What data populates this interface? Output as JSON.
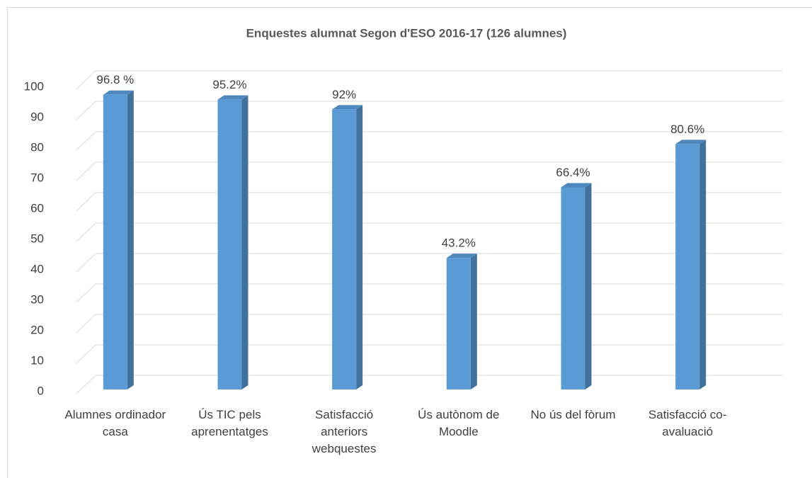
{
  "chart_data": {
    "type": "bar",
    "title": "Enquestes alumnat Segon d'ESO 2016-17 (126 alumnes)",
    "categories": [
      "Alumnes ordinador casa",
      "Ús TIC pels aprenentatges",
      "Satisfacció anteriors webquestes",
      "Ús autònom de Moodle",
      "No ús del fòrum",
      "Satisfacció co-avaluació"
    ],
    "values": [
      96.8,
      95.2,
      92,
      43.2,
      66.4,
      80.6
    ],
    "value_labels": [
      "96.8 %",
      "95.2%",
      "92%",
      "43.2%",
      "66.4%",
      "80.6%"
    ],
    "color": "#5b9bd5",
    "ylim": [
      0,
      100
    ],
    "yticks": [
      0,
      10,
      20,
      30,
      40,
      50,
      60,
      70,
      80,
      90,
      100
    ],
    "grid": true
  }
}
